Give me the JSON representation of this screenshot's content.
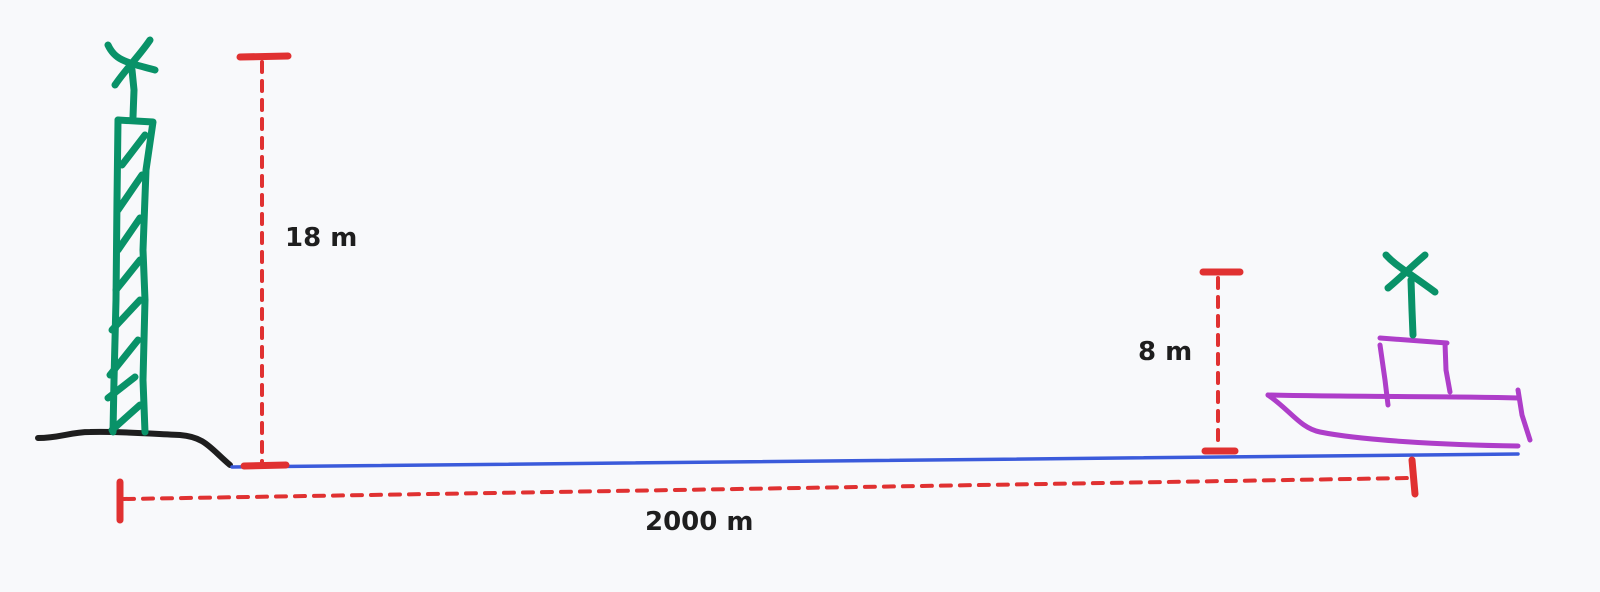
{
  "diagram": {
    "labels": {
      "tower_height": "18 m",
      "boat_height": "8 m",
      "distance": "2000 m"
    },
    "colors": {
      "background": "#f8f9fb",
      "tower": "#099268",
      "dimension": "#e03131",
      "water": "#3b5bdb",
      "ground": "#1e1e1e",
      "boat": "#ae3ec9"
    }
  }
}
